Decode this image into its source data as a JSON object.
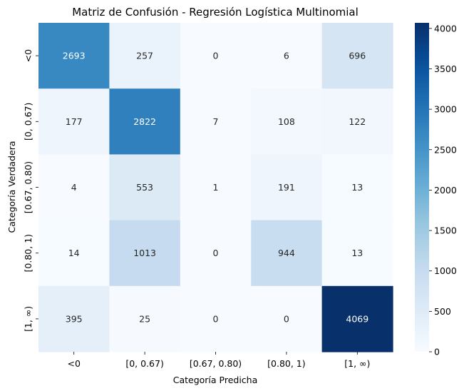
{
  "chart_data": {
    "type": "heatmap",
    "title": "Matriz de Confusión - Regresión Logística Multinomial",
    "xlabel": "Categoría Predicha",
    "ylabel": "Categoría Verdadera",
    "x_categories": [
      "<0",
      "[0, 0.67)",
      "[0.67, 0.80)",
      "[0.80, 1)",
      "[1, ∞)"
    ],
    "y_categories": [
      "<0",
      "[0, 0.67)",
      "[0.67, 0.80)",
      "[0.80, 1)",
      "[1, ∞)"
    ],
    "values": [
      [
        2693,
        257,
        0,
        6,
        696
      ],
      [
        177,
        2822,
        7,
        108,
        122
      ],
      [
        4,
        553,
        1,
        191,
        13
      ],
      [
        14,
        1013,
        0,
        944,
        13
      ],
      [
        395,
        25,
        0,
        0,
        4069
      ]
    ],
    "colormap": "Blues",
    "colorbar": {
      "range": [
        0,
        4069
      ],
      "ticks": [
        0,
        500,
        1000,
        1500,
        2000,
        2500,
        3000,
        3500,
        4000
      ]
    },
    "colors": {
      "low": "#f7fbff",
      "high": "#08306b",
      "text_dark": "#262626",
      "text_light": "#ffffff"
    },
    "grid": false,
    "annotated": true
  }
}
